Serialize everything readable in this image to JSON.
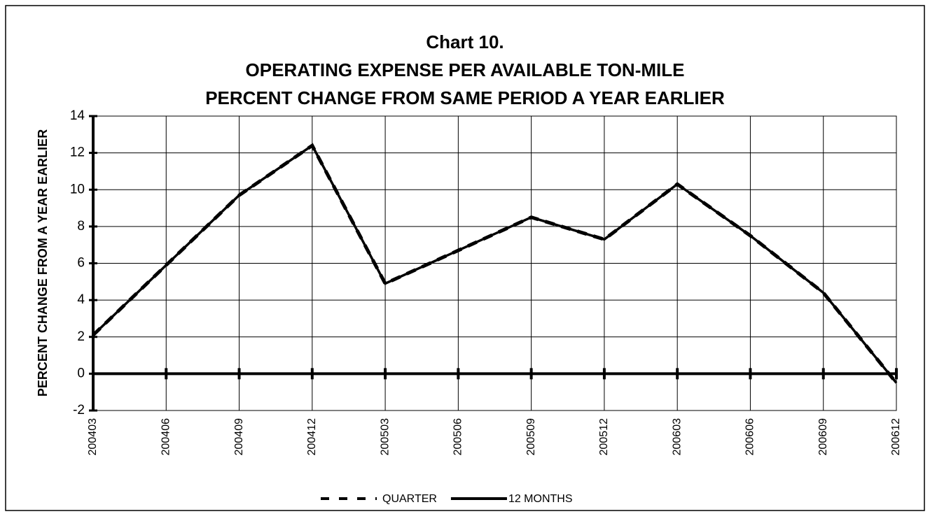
{
  "chart_data": {
    "type": "line",
    "title": [
      "Chart 10.",
      "OPERATING EXPENSE PER AVAILABLE TON-MILE",
      "PERCENT CHANGE FROM SAME PERIOD A YEAR EARLIER"
    ],
    "y_label": "PERCENT CHANGE FROM A YEAR EARLIER",
    "categories": [
      "200403",
      "200406",
      "200409",
      "200412",
      "200503",
      "200506",
      "200509",
      "200512",
      "200603",
      "200606",
      "200609",
      "200612"
    ],
    "series": [
      {
        "name": "QUARTER",
        "color": "#000000",
        "style": "dashed",
        "values": [
          2.1,
          5.9,
          9.7,
          12.4,
          4.9,
          6.7,
          8.5,
          7.3,
          10.3,
          7.5,
          4.4,
          -0.5
        ]
      },
      {
        "name": "12 MONTHS",
        "color": "#000000",
        "style": "solid",
        "values": [
          2.1,
          5.9,
          9.7,
          12.4,
          4.9,
          6.7,
          8.5,
          7.3,
          10.3,
          7.5,
          4.4,
          -0.5
        ]
      }
    ],
    "ylim": [
      -2,
      14
    ],
    "yticks": [
      -2,
      0,
      2,
      4,
      6,
      8,
      10,
      12,
      14
    ],
    "grid": true,
    "legend": "bottom"
  }
}
